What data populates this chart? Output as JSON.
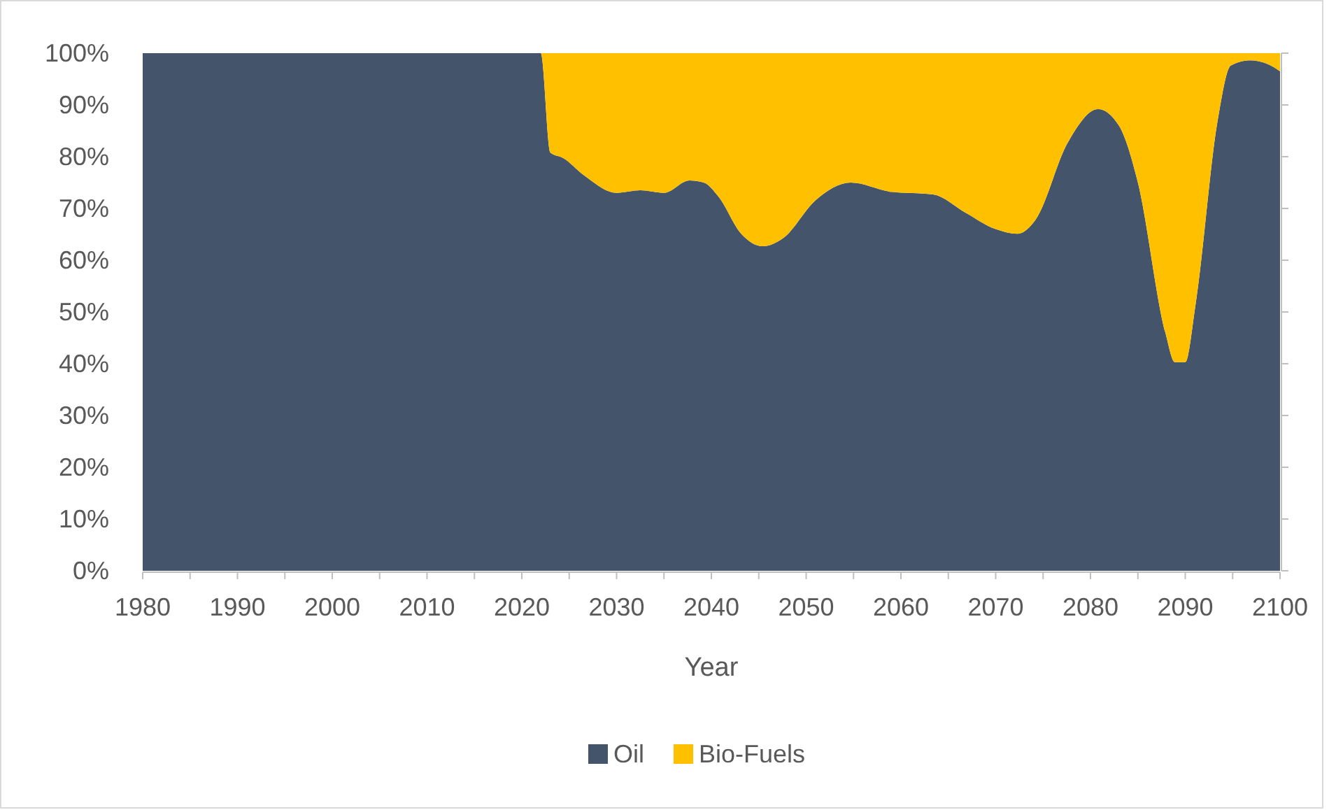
{
  "chart_data": {
    "type": "area",
    "stacked": true,
    "xlabel": "Year",
    "x": [
      1980,
      2022,
      2023,
      2024.4,
      2026.5,
      2030,
      2032.5,
      2035,
      2037.7,
      2039.2,
      2040.7,
      2043.2,
      2045.4,
      2047.6,
      2051,
      2054.7,
      2059,
      2063.4,
      2066.8,
      2070,
      2072.3,
      2074.2,
      2077.6,
      2080.8,
      2083,
      2085,
      2087.9,
      2088.9,
      2090,
      2091.1,
      2093.4,
      2094.8,
      2096.8,
      2098.8,
      2100
    ],
    "series": [
      {
        "name": "Oil",
        "color": "#44546a",
        "values": [
          100,
          100,
          80.8,
          79.7,
          76.5,
          73,
          73.5,
          73,
          75.4,
          75,
          72.4,
          65,
          62.7,
          64.3,
          71.6,
          75,
          73.2,
          72.7,
          69.2,
          66,
          65.1,
          67.8,
          82.7,
          89.2,
          86,
          75,
          46,
          40.3,
          40.3,
          51.6,
          86.8,
          97.6,
          98.6,
          97.8,
          96.5
        ]
      },
      {
        "name": "Bio-Fuels",
        "color": "#ffc000",
        "values": [
          0,
          0,
          19.2,
          20.3,
          23.5,
          27,
          26.5,
          27,
          24.6,
          25,
          27.6,
          35,
          37.3,
          35.7,
          28.4,
          25,
          26.8,
          27.3,
          30.8,
          34,
          34.9,
          32.2,
          17.3,
          10.8,
          14,
          25,
          54,
          59.7,
          59.7,
          48.4,
          13.2,
          2.4,
          1.4,
          2.2,
          3.5
        ]
      }
    ],
    "xlim": [
      1980,
      2100
    ],
    "xticks": [
      1980,
      {
        "value": 1985,
        "label": null
      },
      1990,
      {
        "value": 1995,
        "label": null
      },
      2000,
      {
        "value": 2005,
        "label": null
      },
      2010,
      {
        "value": 2015,
        "label": null
      },
      2020,
      {
        "value": 2025,
        "label": null
      },
      2030,
      {
        "value": 2035,
        "label": null
      },
      2040,
      {
        "value": 2045,
        "label": null
      },
      2050,
      {
        "value": 2055,
        "label": null
      },
      2060,
      {
        "value": 2065,
        "label": null
      },
      2070,
      {
        "value": 2075,
        "label": null
      },
      2080,
      {
        "value": 2085,
        "label": null
      },
      2090,
      {
        "value": 2095,
        "label": null
      },
      2100
    ],
    "ylim": [
      0,
      100
    ],
    "yticks": [
      {
        "value": 0,
        "label": "0%"
      },
      {
        "value": 10,
        "label": "10%"
      },
      {
        "value": 20,
        "label": "20%"
      },
      {
        "value": 30,
        "label": "30%"
      },
      {
        "value": 40,
        "label": "40%"
      },
      {
        "value": 50,
        "label": "50%"
      },
      {
        "value": 60,
        "label": "60%"
      },
      {
        "value": 70,
        "label": "70%"
      },
      {
        "value": 80,
        "label": "80%"
      },
      {
        "value": 90,
        "label": "90%"
      },
      {
        "value": 100,
        "label": "100%"
      }
    ],
    "grid": false,
    "legend": "bottom"
  }
}
